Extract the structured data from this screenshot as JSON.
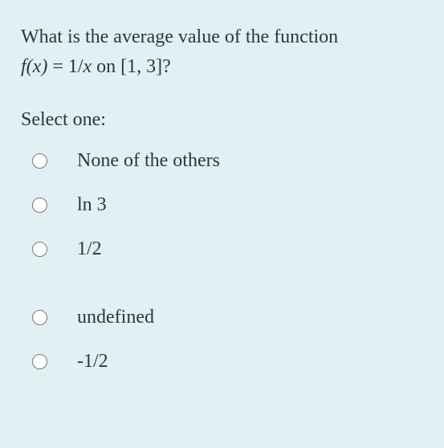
{
  "question": {
    "line1_pre": "What is the average value of the function",
    "fx": "f(x)",
    "eq": " = 1/",
    "x": "x",
    "on": " on [1, 3]?"
  },
  "prompt": "Select one:",
  "options": [
    {
      "label": "None of the others",
      "gap_before": false
    },
    {
      "label": "ln 3",
      "gap_before": false
    },
    {
      "label": "1/2",
      "gap_before": false
    },
    {
      "label": "undefined",
      "gap_before": true
    },
    {
      "label": "-1/2",
      "gap_before": false
    }
  ],
  "colors": {
    "background": "#e3f0f3",
    "text": "#203a4a"
  },
  "typography": {
    "font_family": "Georgia, Times New Roman, serif",
    "question_fontsize": 24,
    "option_fontsize": 24
  }
}
